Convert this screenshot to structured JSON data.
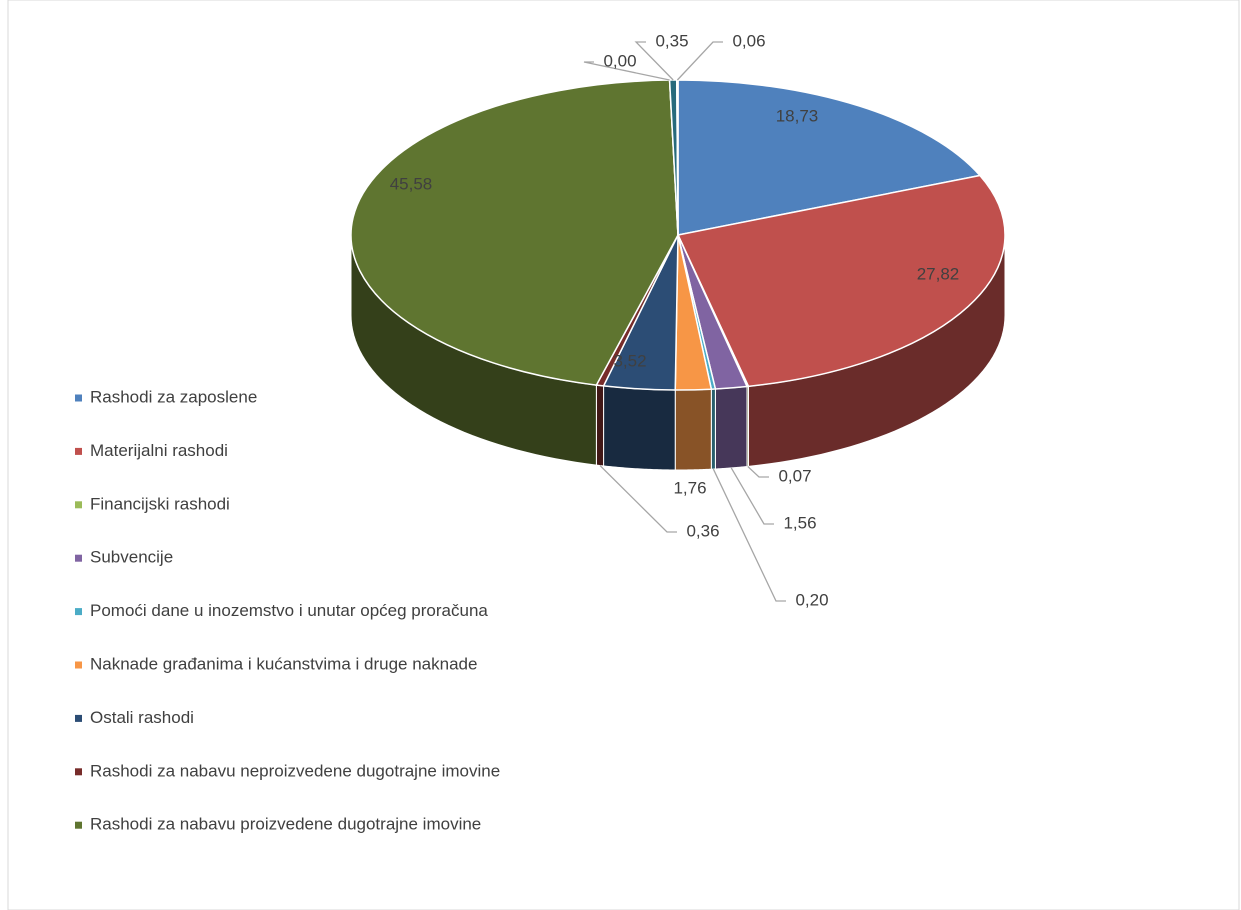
{
  "chart_data": {
    "type": "pie",
    "categories": [
      "Rashodi za zaposlene",
      "Materijalni rashodi",
      "Financijski rashodi",
      "Subvencije",
      "Pomoći dane u inozemstvo i unutar općeg proračuna",
      "Naknade građanima i kućanstvima i druge naknade",
      "Ostali rashodi",
      "Rashodi za nabavu neproizvedene dugotrajne imovine",
      "Rashodi za nabavu proizvedene dugotrajne imovine",
      null,
      null,
      null
    ],
    "values": [
      18.73,
      27.82,
      0.07,
      1.56,
      0.2,
      1.76,
      3.52,
      0.36,
      45.58,
      0.0,
      0.35,
      0.06
    ],
    "value_labels": [
      "18,73",
      "27,82",
      "0,07",
      "1,56",
      "0,20",
      "1,76",
      "3,52",
      "0,36",
      "45,58",
      "0,00",
      "0,35",
      "0,06"
    ],
    "colors": [
      "#4f81bd",
      "#c0504d",
      "#9bbb59",
      "#8064a2",
      "#4bacc6",
      "#f79646",
      "#2c4d75",
      "#772c2a",
      "#5f7530",
      "#4d3b62",
      "#276a7c",
      "#1f6fa8"
    ],
    "legend": "left"
  }
}
